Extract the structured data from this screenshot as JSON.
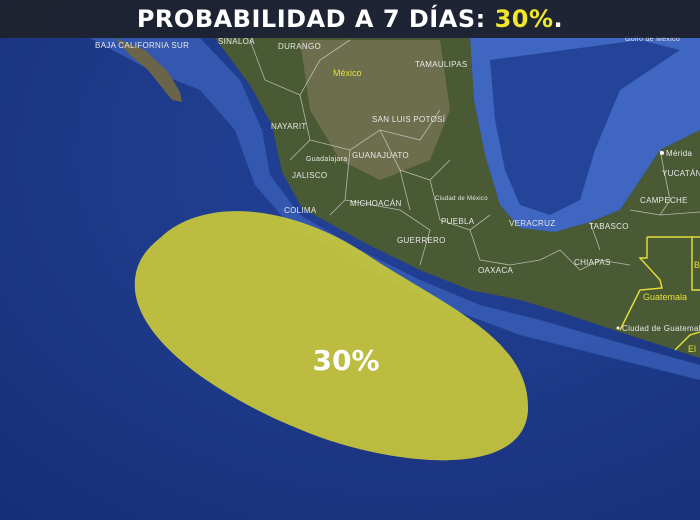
{
  "header": {
    "title_prefix": "PROBABILIDAD A 7 DÍAS: ",
    "title_value": "30%",
    "title_suffix": "."
  },
  "area": {
    "label": "30%",
    "probability_percent": 30,
    "fill_color": "#c9c83a"
  },
  "map_labels": {
    "baja": "BAJA CALIFORNIA SUR",
    "sinaloa": "SINALOA",
    "durango": "DURANGO",
    "mexico": "México",
    "tamaulipas": "TAMAULIPAS",
    "slp": "SAN LUIS POTOSÍ",
    "nayarit": "NAYARIT",
    "guadalajara": "Guadalajara",
    "jalisco": "JALISCO",
    "guanajuato": "GUANAJUATO",
    "colima": "COLIMA",
    "michoacan": "MICHOACÁN",
    "cdmx": "Ciudad de México",
    "puebla": "PUEBLA",
    "guerrero": "GUERRERO",
    "veracruz": "VERACRUZ",
    "oaxaca": "OAXACA",
    "tabasco": "TABASCO",
    "chiapas": "CHIAPAS",
    "campeche": "CAMPECHE",
    "yucatan": "YUCATÁN",
    "merida": "Mérida",
    "golfo": "Golfo de México",
    "guatemala": "Guatemala",
    "cd_guatemala": "Ciudad de Guatemala",
    "belize": "B",
    "elsalvador": "El"
  },
  "colors": {
    "ocean": "#1f3a8a",
    "shelf": "#3a5fb8",
    "land": "#4a5a34",
    "highland": "#7a7a5a",
    "borders": "#d8d8d8",
    "country_borders": "#e6e03a",
    "title_accent": "#f0e62a"
  }
}
